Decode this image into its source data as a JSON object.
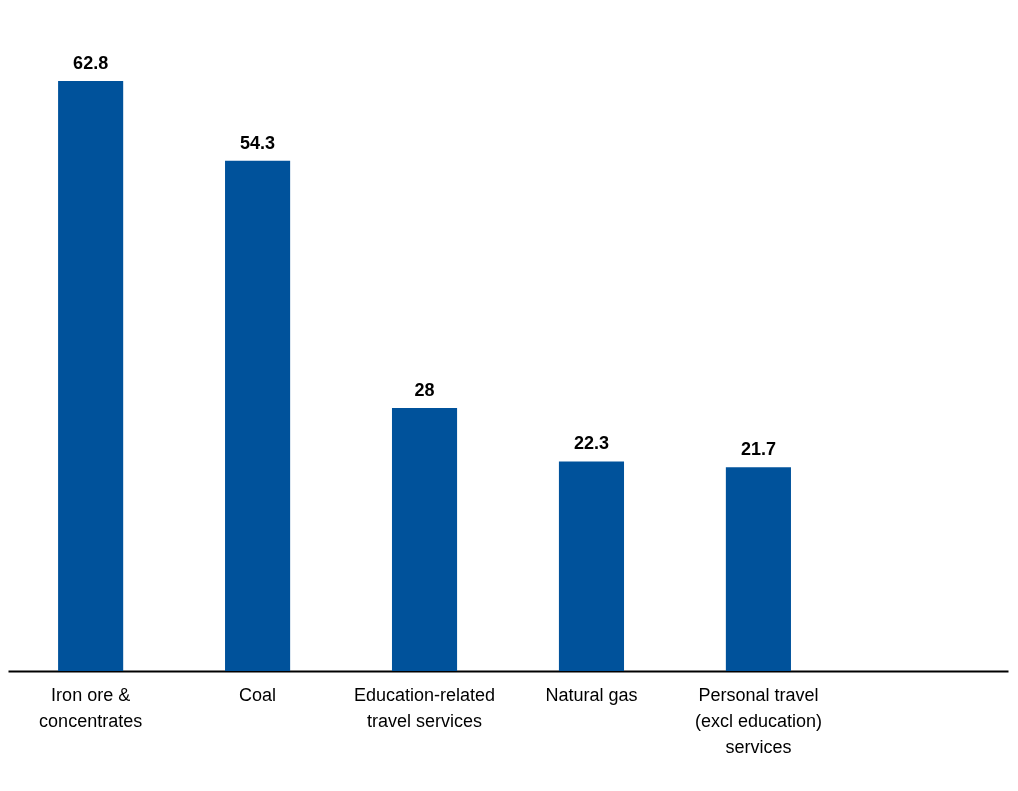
{
  "chart_data": {
    "type": "bar",
    "categories": [
      "Iron ore & concentrates",
      "Coal",
      "Education-related travel services",
      "Natural gas",
      "Personal travel (excl education) services",
      null
    ],
    "values": [
      62.8,
      54.3,
      28,
      22.3,
      21.7,
      null
    ],
    "color": "#00529b",
    "data_labels": true
  }
}
